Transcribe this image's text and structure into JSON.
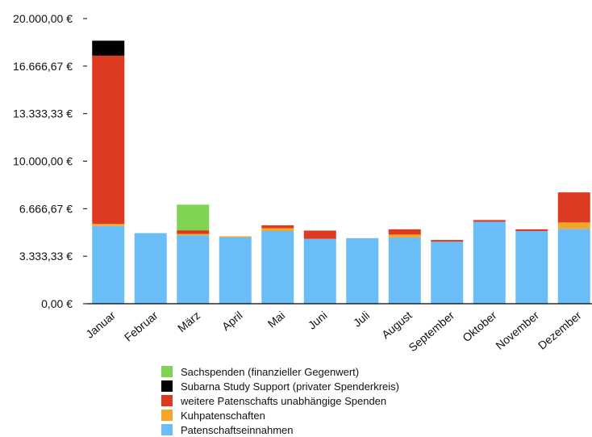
{
  "chart_data": {
    "type": "bar",
    "stacked": true,
    "title": "",
    "xlabel": "",
    "ylabel": "",
    "ylim": [
      0,
      20000
    ],
    "y_ticks": [
      0,
      3333.33,
      6666.67,
      10000,
      13333.33,
      16666.67,
      20000
    ],
    "y_tick_labels": [
      "0,00 €",
      "3.333,33 €",
      "6.666,67 €",
      "10.000,00 €",
      "13.333,33 €",
      "16.666,67 €",
      "20.000,00 €"
    ],
    "grid": false,
    "legend_position": "bottom",
    "categories": [
      "Januar",
      "Februar",
      "März",
      "April",
      "Mai",
      "Juni",
      "Juli",
      "August",
      "September",
      "Oktober",
      "November",
      "Dezember"
    ],
    "series": [
      {
        "name": "Patenschaftseinnahmen",
        "color": "#6bbdf8",
        "values": [
          5450,
          4950,
          4800,
          4650,
          5100,
          4550,
          4600,
          4650,
          4350,
          5750,
          5100,
          5250
        ]
      },
      {
        "name": "Kuhpatenschaften",
        "color": "#f4a62a",
        "values": [
          150,
          0,
          100,
          80,
          200,
          0,
          0,
          200,
          0,
          0,
          0,
          450
        ]
      },
      {
        "name": "weitere Patenschafts unabhängige Spenden",
        "color": "#dd3a22",
        "values": [
          11800,
          0,
          250,
          0,
          200,
          580,
          0,
          370,
          120,
          120,
          120,
          2110
        ]
      },
      {
        "name": "Subarna Study  Support (privater Spenderkreis)",
        "color": "#000000",
        "values": [
          1050,
          0,
          0,
          0,
          0,
          0,
          0,
          0,
          0,
          0,
          0,
          0
        ]
      },
      {
        "name": "Sachspenden (finanzieller Gegenwert)",
        "color": "#7fd553",
        "values": [
          0,
          0,
          1800,
          0,
          0,
          0,
          0,
          0,
          0,
          0,
          0,
          0
        ]
      }
    ],
    "legend_order": [
      4,
      3,
      2,
      1,
      0
    ]
  }
}
